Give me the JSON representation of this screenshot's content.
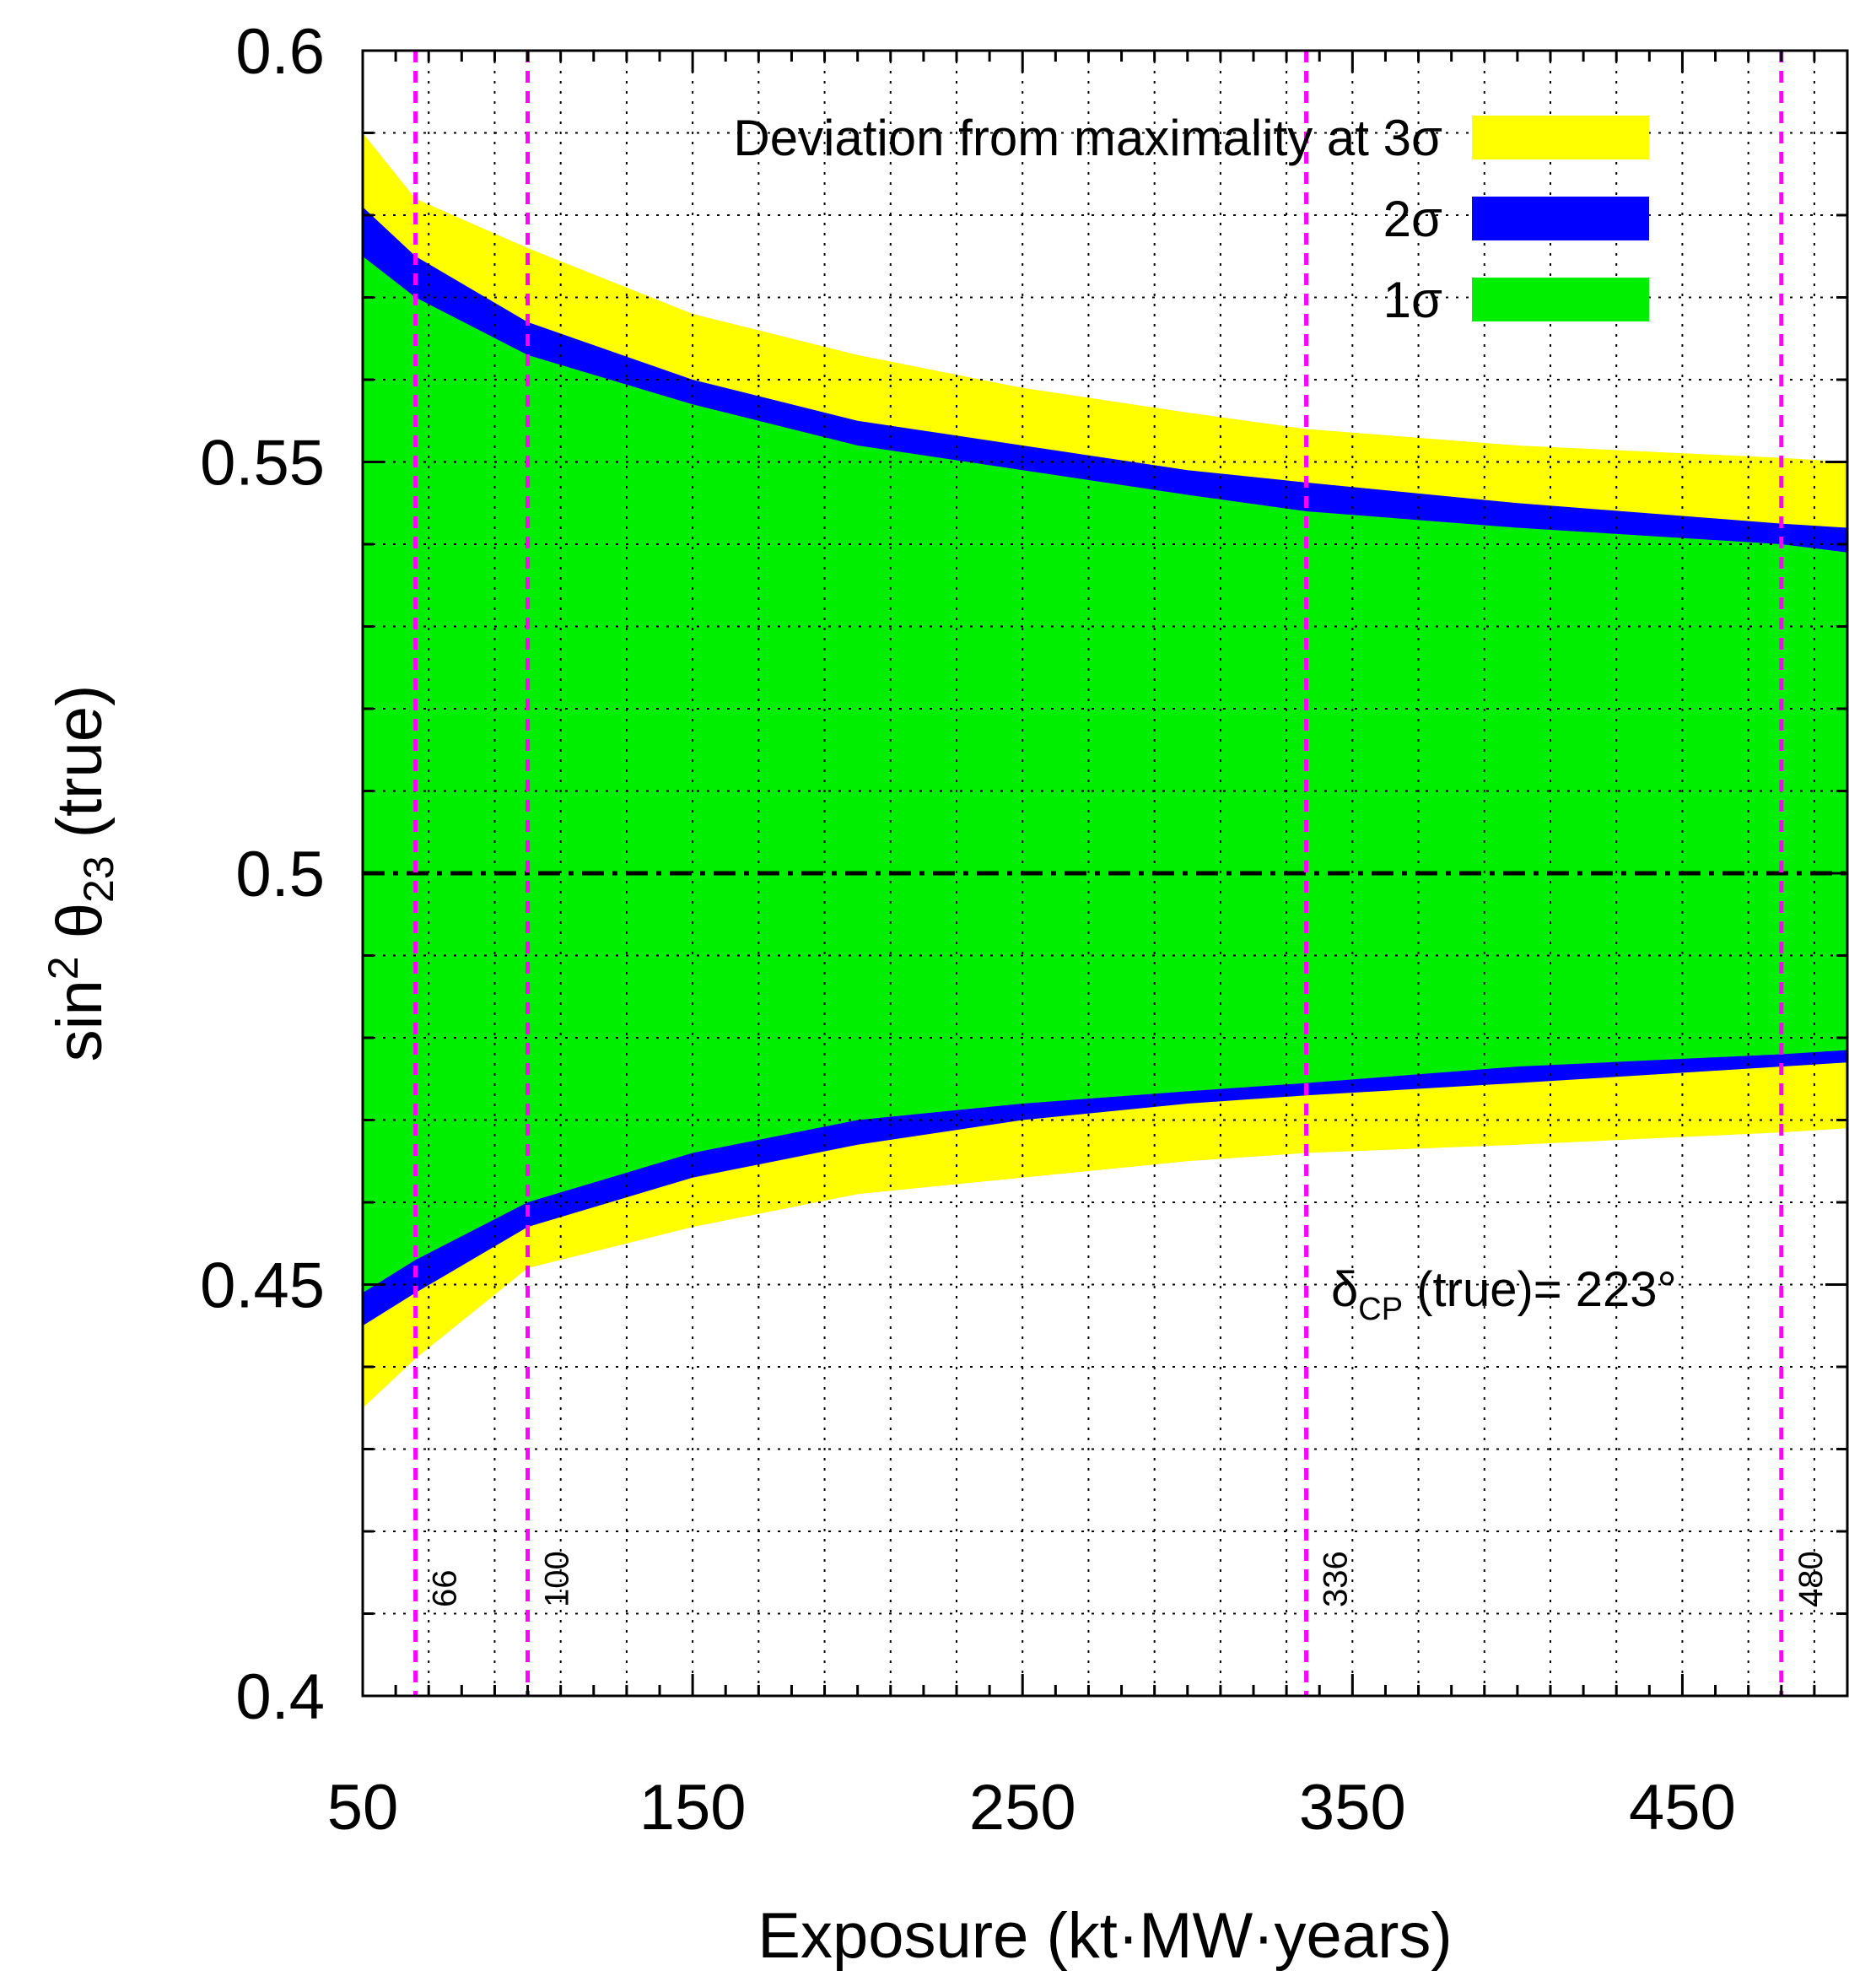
{
  "chart_data": {
    "type": "area",
    "title": "",
    "xlabel": "Exposure (kt·MW·years)",
    "ylabel_main": "sin",
    "ylabel_sup": "2",
    "ylabel_theta": " θ",
    "ylabel_sub": "23",
    "ylabel_tail": " (true)",
    "xlim": [
      50,
      500
    ],
    "ylim": [
      0.4,
      0.6
    ],
    "xticks": [
      50,
      150,
      250,
      350,
      450
    ],
    "xtick_labels": [
      "50",
      "150",
      "250",
      "350",
      "450"
    ],
    "yticks": [
      0.4,
      0.45,
      0.5,
      0.55,
      0.6
    ],
    "ytick_labels": [
      "0.4",
      "0.45",
      "0.5",
      "0.55",
      "0.6"
    ],
    "grid": true,
    "x": [
      50,
      66,
      100,
      150,
      200,
      250,
      300,
      336,
      400,
      480,
      500
    ],
    "series": [
      {
        "name": "Deviation from maximality at 3σ",
        "color": "#ffff00",
        "upper": [
          0.59,
          0.582,
          0.576,
          0.568,
          0.563,
          0.559,
          0.556,
          0.554,
          0.552,
          0.5505,
          0.55
        ],
        "lower": [
          0.435,
          0.441,
          0.452,
          0.457,
          0.461,
          0.463,
          0.465,
          0.466,
          0.467,
          0.4685,
          0.469
        ]
      },
      {
        "name": "2σ",
        "color": "#0000ff",
        "upper": [
          0.581,
          0.575,
          0.567,
          0.56,
          0.555,
          0.552,
          0.549,
          0.5475,
          0.545,
          0.5425,
          0.542
        ],
        "lower": [
          0.445,
          0.449,
          0.457,
          0.463,
          0.467,
          0.47,
          0.472,
          0.473,
          0.4745,
          0.4765,
          0.477
        ]
      },
      {
        "name": "1σ",
        "color": "#00ee00",
        "upper": [
          0.575,
          0.57,
          0.563,
          0.557,
          0.552,
          0.549,
          0.546,
          0.544,
          0.542,
          0.54,
          0.539
        ],
        "lower": [
          0.449,
          0.453,
          0.46,
          0.466,
          0.47,
          0.472,
          0.4735,
          0.4745,
          0.4765,
          0.478,
          0.4785
        ]
      }
    ],
    "reference_line": {
      "y": 0.5,
      "style": "dash-dot",
      "color": "#000000"
    },
    "vertical_lines": [
      {
        "x": 66,
        "label": "66"
      },
      {
        "x": 100,
        "label": "100"
      },
      {
        "x": 336,
        "label": "336"
      },
      {
        "x": 480,
        "label": "480"
      }
    ],
    "vertical_line_color": "#ff00ff",
    "legend_placement": "top-right",
    "annotation": {
      "delta": "δ",
      "sub": "CP",
      "rest": " (true)= 223°"
    }
  }
}
